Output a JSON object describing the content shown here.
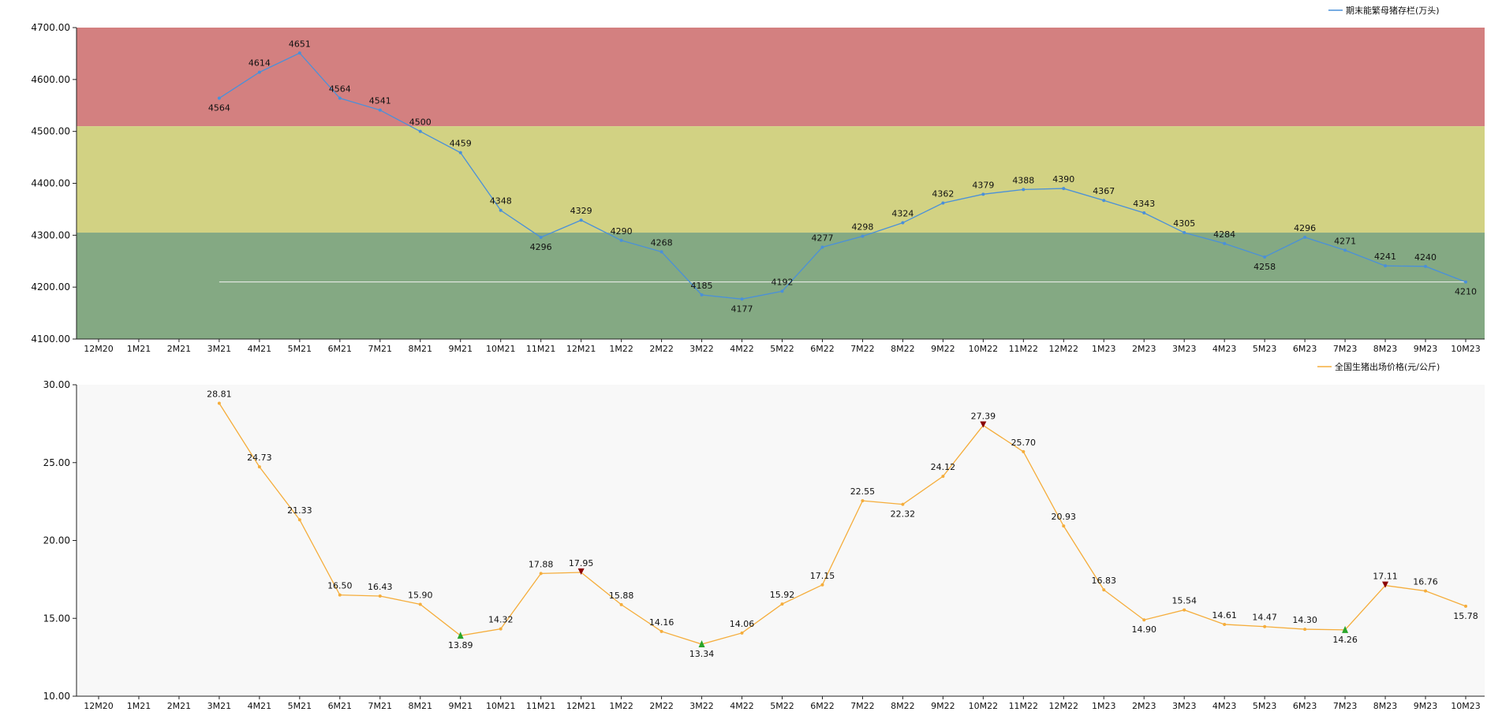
{
  "chart_data": [
    {
      "type": "line",
      "title": "",
      "xlabel": "",
      "ylabel": "",
      "categories": [
        "12M20",
        "1M21",
        "2M21",
        "3M21",
        "4M21",
        "5M21",
        "6M21",
        "7M21",
        "8M21",
        "9M21",
        "10M21",
        "11M21",
        "12M21",
        "1M22",
        "2M22",
        "3M22",
        "4M22",
        "5M22",
        "6M22",
        "7M22",
        "8M22",
        "9M22",
        "10M22",
        "11M22",
        "12M22",
        "1M23",
        "2M23",
        "3M23",
        "4M23",
        "5M23",
        "6M23",
        "7M23",
        "8M23",
        "9M23",
        "10M23"
      ],
      "ylim": [
        4100,
        4700
      ],
      "yticks": [
        "4100.00",
        "4200.00",
        "4300.00",
        "4400.00",
        "4500.00",
        "4600.00",
        "4700.00"
      ],
      "ytick_values": [
        4100,
        4200,
        4300,
        4400,
        4500,
        4600,
        4700
      ],
      "legend": {
        "label": "期末能繁母猪存栏(万头)",
        "position": "top-right"
      },
      "series": [
        {
          "name": "期末能繁母猪存栏(万头)",
          "color": "#4a90d9",
          "values": [
            null,
            null,
            null,
            4564,
            4614,
            4651,
            4564,
            4541,
            4500,
            4459,
            4348,
            4296,
            4329,
            4290,
            4268,
            4185,
            4177,
            4192,
            4277,
            4298,
            4324,
            4362,
            4379,
            4388,
            4390,
            4367,
            4343,
            4305,
            4284,
            4258,
            4296,
            4271,
            4241,
            4240,
            4210
          ],
          "label_below": [
            3,
            11,
            16,
            29,
            34
          ],
          "labels": [
            "",
            "",
            "",
            "4564",
            "4614",
            "4651",
            "4564",
            "4541",
            "4500",
            "4459",
            "4348",
            "4296",
            "4329",
            "4290",
            "4268",
            "4185",
            "4177",
            "4192",
            "4277",
            "4298",
            "4324",
            "4362",
            "4379",
            "4388",
            "4390",
            "4367",
            "4343",
            "4305",
            "4284",
            "4258",
            "4296",
            "4271",
            "4241",
            "4240",
            "4210"
          ]
        }
      ],
      "bands": [
        {
          "from": 4510,
          "to": 4700,
          "color": "#d38080"
        },
        {
          "from": 4305,
          "to": 4510,
          "color": "#d2d283"
        },
        {
          "from": 4100,
          "to": 4305,
          "color": "#84a983"
        }
      ],
      "reference_line": {
        "value": 4210,
        "from_index": 3,
        "to_index": 34,
        "color": "#f2f2f2"
      }
    },
    {
      "type": "line",
      "title": "",
      "xlabel": "",
      "ylabel": "",
      "categories": [
        "12M20",
        "1M21",
        "2M21",
        "3M21",
        "4M21",
        "5M21",
        "6M21",
        "7M21",
        "8M21",
        "9M21",
        "10M21",
        "11M21",
        "12M21",
        "1M22",
        "2M22",
        "3M22",
        "4M22",
        "5M22",
        "6M22",
        "7M22",
        "8M22",
        "9M22",
        "10M22",
        "11M22",
        "12M22",
        "1M23",
        "2M23",
        "3M23",
        "4M23",
        "5M23",
        "6M23",
        "7M23",
        "8M23",
        "9M23",
        "10M23"
      ],
      "ylim": [
        10,
        30
      ],
      "yticks": [
        "10.00",
        "15.00",
        "20.00",
        "25.00",
        "30.00"
      ],
      "ytick_values": [
        10,
        15,
        20,
        25,
        30
      ],
      "legend": {
        "label": "全国生猪出场价格(元/公斤)",
        "position": "top-right"
      },
      "background": "#f8f8f8",
      "series": [
        {
          "name": "全国生猪出场价格(元/公斤)",
          "color": "#f5ad3b",
          "values": [
            null,
            null,
            null,
            28.81,
            24.73,
            21.33,
            16.5,
            16.43,
            15.9,
            13.89,
            14.32,
            17.88,
            17.95,
            15.88,
            14.16,
            13.34,
            14.06,
            15.92,
            17.15,
            22.55,
            22.32,
            24.12,
            27.39,
            25.7,
            20.93,
            16.83,
            14.9,
            15.54,
            14.61,
            14.47,
            14.3,
            14.26,
            17.11,
            16.76,
            15.78
          ],
          "label_below": [
            9,
            15,
            20,
            26,
            31,
            34
          ],
          "labels": [
            "",
            "",
            "",
            "28.81",
            "24.73",
            "21.33",
            "16.50",
            "16.43",
            "15.90",
            "13.89",
            "14.32",
            "17.88",
            "17.95",
            "15.88",
            "14.16",
            "13.34",
            "14.06",
            "15.92",
            "17.15",
            "22.55",
            "22.32",
            "24.12",
            "27.39",
            "25.70",
            "20.93",
            "16.83",
            "14.90",
            "15.54",
            "14.61",
            "14.47",
            "14.30",
            "14.26",
            "17.11",
            "16.76",
            "15.78"
          ],
          "peaks": [
            12,
            22,
            32
          ],
          "troughs": [
            9,
            15,
            31
          ],
          "peak_color": "#8b0000",
          "trough_color": "#2aa52a"
        }
      ]
    }
  ]
}
